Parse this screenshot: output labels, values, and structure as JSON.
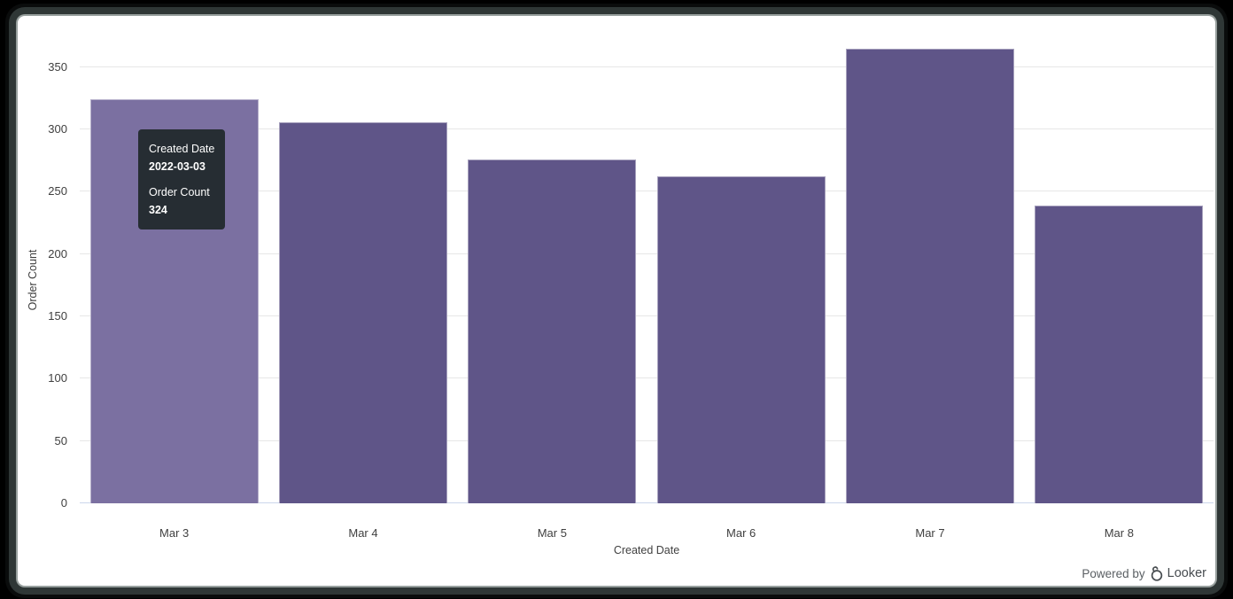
{
  "chart_data": {
    "type": "bar",
    "title": "",
    "categories": [
      "Mar 3",
      "Mar 4",
      "Mar 5",
      "Mar 6",
      "Mar 7",
      "Mar 8"
    ],
    "values": [
      324,
      306,
      276,
      262,
      365,
      239
    ],
    "xlabel": "Created Date",
    "ylabel": "Order Count",
    "yticks": [
      0,
      50,
      100,
      150,
      200,
      250,
      300,
      350
    ],
    "ylim": [
      0,
      391
    ],
    "grid": true,
    "legend": false,
    "bar_color": "#5f5588",
    "hovered_bar_color": "#7b70a1",
    "hovered_index": 0
  },
  "tooltip": {
    "field1_label": "Created Date",
    "field1_value": "2022-03-03",
    "field2_label": "Order Count",
    "field2_value": "324",
    "bg_color": "#262d33"
  },
  "branding": {
    "powered_by": "Powered by",
    "brand": "Looker"
  },
  "colors": {
    "gridline": "#e7e7e7",
    "axis_line": "#ccd6eb",
    "axis_text": "#404040",
    "frame_border": "#2f3736"
  }
}
